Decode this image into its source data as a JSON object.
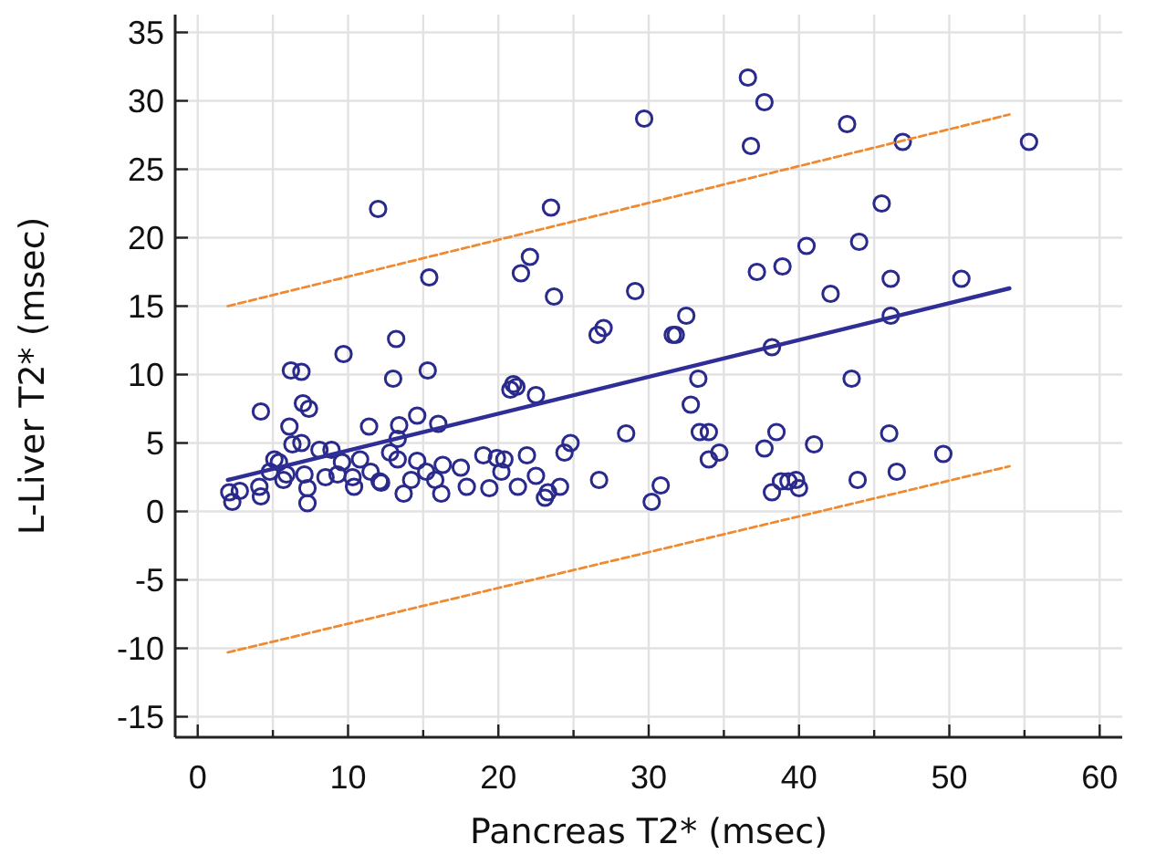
{
  "chart_data": {
    "type": "scatter",
    "xlabel": "Pancreas T2* (msec)",
    "ylabel": "L-Liver T2* (msec)",
    "xlim": [
      -1.5,
      61.5
    ],
    "ylim": [
      -16.5,
      36.3
    ],
    "xticks": [
      0,
      {
        "value": 5,
        "label": null
      },
      10,
      {
        "value": 15,
        "label": null
      },
      20,
      {
        "value": 25,
        "label": null
      },
      30,
      {
        "value": 35,
        "label": null
      },
      40,
      {
        "value": 45,
        "label": null
      },
      50,
      {
        "value": 55,
        "label": null
      },
      60
    ],
    "yticks": [
      -15,
      -10,
      -5,
      0,
      5,
      10,
      15,
      20,
      25,
      30,
      35
    ],
    "grid": true,
    "series": [
      {
        "color": "#2a2a8c",
        "marker": "circle",
        "x": [
          36.6,
          37.7,
          36.8,
          43.2,
          46.9,
          55.3,
          45.5,
          40.5,
          44,
          37.2,
          38.9,
          42.1,
          46.1,
          50.8,
          32.5,
          31.8,
          38.2,
          46.1,
          33.3,
          43.5,
          29.7,
          12.0,
          23.5,
          22.1,
          21.5,
          15.4,
          23.7,
          29.1,
          26.6,
          27.0,
          31.6,
          13.2,
          9.7,
          6.2,
          6.9,
          15.3,
          13.0,
          21.0,
          20.8,
          21.2,
          22.5,
          4.2,
          7.0,
          7.4,
          6.1,
          11.4,
          13.4,
          14.6,
          16.0,
          13.3,
          6.3,
          6.9,
          8.1,
          8.9,
          5.1,
          5.4,
          12.8,
          10.8,
          9.6,
          13.3,
          14.6,
          16.3,
          17.5,
          19.0,
          19.9,
          20.4,
          21.9,
          24.4,
          24.8,
          28.5,
          4.8,
          5.9,
          7.1,
          8.5,
          9.3,
          10.3,
          11.5,
          12.1,
          14.2,
          15.2,
          15.8,
          20.2,
          22.5,
          24.1,
          23.3,
          23.1,
          26.7,
          30.8,
          30.2,
          2.1,
          2.3,
          2.8,
          4.1,
          4.2,
          5.7,
          7.3,
          7.3,
          10.4,
          12.2,
          13.7,
          16.2,
          17.9,
          19.4,
          21.3,
          32.8,
          33.4,
          34.0,
          38.5,
          34.0,
          34.7,
          37.7,
          41.0,
          46.0,
          49.6,
          38.2,
          38.8,
          39.3,
          39.8,
          40.0,
          43.9,
          46.5
        ],
        "values": [
          31.7,
          29.9,
          26.7,
          28.3,
          27.0,
          27.0,
          22.5,
          19.4,
          19.7,
          17.5,
          17.9,
          15.9,
          17.0,
          17.0,
          14.3,
          12.9,
          12.0,
          14.3,
          9.7,
          9.7,
          28.7,
          22.1,
          22.2,
          18.6,
          17.4,
          17.1,
          15.7,
          16.1,
          12.9,
          13.4,
          12.9,
          12.6,
          11.5,
          10.3,
          10.2,
          10.3,
          9.7,
          9.3,
          8.9,
          9.1,
          8.5,
          7.3,
          7.9,
          7.5,
          6.2,
          6.2,
          6.3,
          7.0,
          6.4,
          5.3,
          4.9,
          5.0,
          4.5,
          4.5,
          3.8,
          3.6,
          4.3,
          3.8,
          3.6,
          3.8,
          3.7,
          3.4,
          3.2,
          4.1,
          3.9,
          3.8,
          4.1,
          4.3,
          5.0,
          5.7,
          2.9,
          2.7,
          2.7,
          2.5,
          2.7,
          2.5,
          2.9,
          2.2,
          2.3,
          2.9,
          2.3,
          2.9,
          2.6,
          1.8,
          1.4,
          1.0,
          2.3,
          1.9,
          0.7,
          1.4,
          0.7,
          1.5,
          1.8,
          1.1,
          2.3,
          1.7,
          0.6,
          1.8,
          2.1,
          1.3,
          1.3,
          1.8,
          1.7,
          1.8,
          7.8,
          5.8,
          5.8,
          5.8,
          3.8,
          4.3,
          4.6,
          4.9,
          5.7,
          4.2,
          1.4,
          2.2,
          2.2,
          2.3,
          1.7,
          2.3,
          2.9
        ]
      },
      {
        "type": "line",
        "color": "#2e2e96",
        "line_style": "solid",
        "x": [
          2,
          54
        ],
        "values": [
          2.3,
          16.3
        ]
      },
      {
        "type": "line",
        "color": "#f08a30",
        "line_style": "dashed",
        "x": [
          2,
          54
        ],
        "values": [
          15,
          29
        ]
      },
      {
        "type": "line",
        "color": "#f08a30",
        "line_style": "dashed",
        "x": [
          2,
          54
        ],
        "values": [
          -10.3,
          3.3
        ]
      }
    ]
  }
}
